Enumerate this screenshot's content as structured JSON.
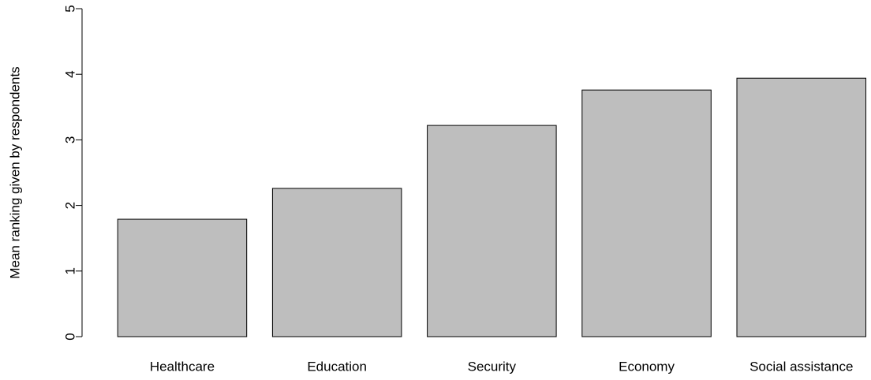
{
  "chart_data": {
    "type": "bar",
    "y_label": "Mean ranking given by respondents",
    "categories": [
      "Healthcare",
      "Education",
      "Security",
      "Economy",
      "Social assistance"
    ],
    "values": [
      1.79,
      2.26,
      3.22,
      3.76,
      3.94
    ],
    "color": "#bebebe",
    "ylim": [
      0,
      5
    ],
    "yticks": [
      0,
      1,
      2,
      3,
      4,
      5
    ],
    "grid": false
  }
}
